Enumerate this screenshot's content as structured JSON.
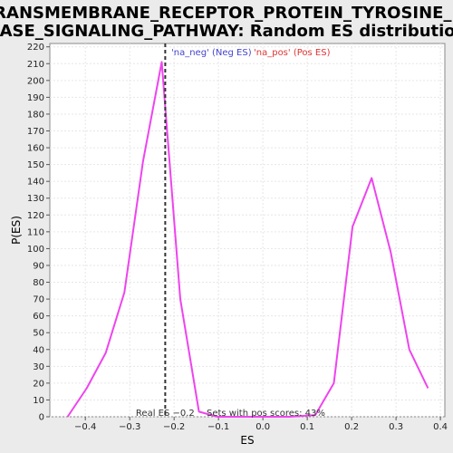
{
  "chart_data": {
    "type": "line",
    "title_lines": [
      "TRANSMEMBRANE_RECEPTOR_PROTEIN_TYROSINE_KI",
      "NASE_SIGNALING_PATHWAY: Random ES distribution"
    ],
    "xlabel": "ES",
    "ylabel": "P(ES)",
    "xlim": [
      -0.48,
      0.41
    ],
    "ylim": [
      0,
      222
    ],
    "xticks": [
      -0.4,
      -0.3,
      -0.2,
      -0.1,
      0.0,
      0.1,
      0.2,
      0.3,
      0.4
    ],
    "xtick_labels": [
      "−0.4",
      "−0.3",
      "−0.2",
      "−0.1",
      "0.0",
      "0.1",
      "0.2",
      "0.3",
      "0.4"
    ],
    "yticks": [
      0,
      10,
      20,
      30,
      40,
      50,
      60,
      70,
      80,
      90,
      100,
      110,
      120,
      130,
      140,
      150,
      160,
      170,
      180,
      190,
      200,
      210,
      220
    ],
    "grid": true,
    "legend": [
      {
        "label": "'na_neg' (Neg ES)",
        "color": "#4444cc"
      },
      {
        "label": "'na_pos' (Pos ES)",
        "color": "#dd3333"
      }
    ],
    "series": [
      {
        "color": "#ee44ee",
        "x": [
          -0.44,
          -0.397,
          -0.354,
          -0.312,
          -0.27,
          -0.228,
          -0.186,
          -0.144,
          -0.102,
          -0.06,
          0.0,
          0.06,
          0.118,
          0.16,
          0.202,
          0.245,
          0.288,
          0.33,
          0.372
        ],
        "y": [
          0,
          17,
          38,
          74,
          152,
          211,
          70,
          3,
          0,
          0,
          0,
          0,
          1,
          20,
          113,
          142,
          98,
          40,
          17
        ]
      }
    ],
    "real_es": {
      "x": -0.22,
      "label": "Real ES −0.2"
    },
    "annotation": "Sets with pos scores: 43%"
  }
}
